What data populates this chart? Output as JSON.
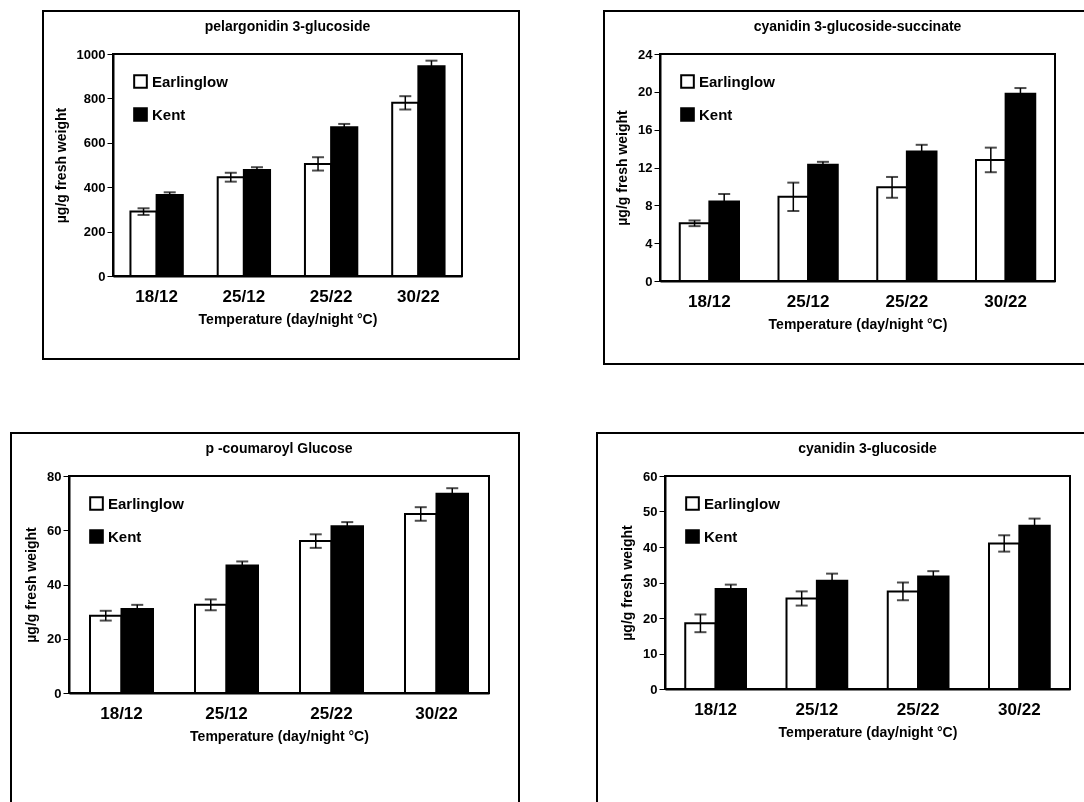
{
  "chart_data": [
    {
      "type": "bar",
      "title": "pelargonidin 3-glucoside",
      "xlabel": "Temperature (day/night °C)",
      "ylabel": "µg/g fresh weight",
      "categories": [
        "18/12",
        "25/12",
        "25/22",
        "30/22"
      ],
      "series": [
        {
          "name": "Earlinglow",
          "color": "#ffffff",
          "values": [
            290,
            445,
            505,
            780
          ],
          "errors": [
            15,
            20,
            30,
            30
          ]
        },
        {
          "name": "Kent",
          "color": "#000000",
          "values": [
            365,
            478,
            670,
            945
          ],
          "errors": [
            12,
            12,
            15,
            25
          ]
        }
      ],
      "ylim": [
        0,
        1000
      ],
      "yticks": [
        0,
        200,
        400,
        600,
        800,
        1000
      ],
      "legend": "top left",
      "grid": false
    },
    {
      "type": "bar",
      "title": "cyanidin 3-glucoside-succinate",
      "xlabel": "Temperature (day/night °C)",
      "ylabel": "µg/g fresh weight",
      "categories": [
        "18/12",
        "25/12",
        "25/22",
        "30/22"
      ],
      "series": [
        {
          "name": "Earlinglow",
          "color": "#ffffff",
          "values": [
            6.1,
            8.9,
            9.9,
            12.8
          ],
          "errors": [
            0.3,
            1.5,
            1.1,
            1.3
          ]
        },
        {
          "name": "Kent",
          "color": "#000000",
          "values": [
            8.4,
            12.3,
            13.7,
            19.8
          ],
          "errors": [
            0.8,
            0.3,
            0.7,
            0.6
          ]
        }
      ],
      "ylim": [
        0,
        24
      ],
      "yticks": [
        0,
        4,
        8,
        12,
        16,
        20,
        24
      ],
      "legend": "top left",
      "grid": false
    },
    {
      "type": "bar",
      "title": "p -coumaroyl Glucose",
      "xlabel": "Temperature (day/night °C)",
      "ylabel": "µg/g fresh weight",
      "categories": [
        "18/12",
        "25/12",
        "25/22",
        "30/22"
      ],
      "series": [
        {
          "name": "Earlinglow",
          "color": "#ffffff",
          "values": [
            28.5,
            32.5,
            56,
            66
          ],
          "errors": [
            1.8,
            2,
            2.5,
            2.5
          ]
        },
        {
          "name": "Kent",
          "color": "#000000",
          "values": [
            31,
            47,
            61.5,
            73.5
          ],
          "errors": [
            1.5,
            1.5,
            1.5,
            2
          ]
        }
      ],
      "ylim": [
        0,
        80
      ],
      "yticks": [
        0,
        20,
        40,
        60,
        80
      ],
      "legend": "top left",
      "grid": false
    },
    {
      "type": "bar",
      "title": "cyanidin 3-glucoside",
      "xlabel": "Temperature (day/night °C)",
      "ylabel": "µg/g fresh weight",
      "categories": [
        "18/12",
        "25/12",
        "25/22",
        "30/22"
      ],
      "series": [
        {
          "name": "Earlinglow",
          "color": "#ffffff",
          "values": [
            18.5,
            25.5,
            27.5,
            41
          ],
          "errors": [
            2.5,
            2,
            2.5,
            2.3
          ]
        },
        {
          "name": "Kent",
          "color": "#000000",
          "values": [
            28.2,
            30.5,
            31.7,
            46
          ],
          "errors": [
            1.2,
            2,
            1.5,
            2
          ]
        }
      ],
      "ylim": [
        0,
        60
      ],
      "yticks": [
        0,
        10,
        20,
        30,
        40,
        50,
        60
      ],
      "legend": "top left",
      "grid": false
    }
  ]
}
